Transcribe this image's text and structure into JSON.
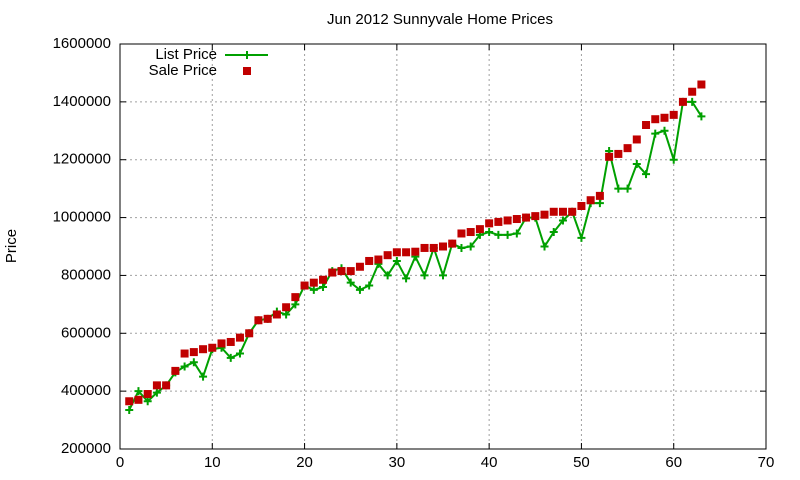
{
  "chart_data": {
    "type": "line",
    "title": "Jun 2012 Sunnyvale Home Prices",
    "y_label": "Price",
    "x": [
      1,
      2,
      3,
      4,
      5,
      6,
      7,
      8,
      9,
      10,
      11,
      12,
      13,
      14,
      15,
      16,
      17,
      18,
      19,
      20,
      21,
      22,
      23,
      24,
      25,
      26,
      27,
      28,
      29,
      30,
      31,
      32,
      33,
      34,
      35,
      36,
      37,
      38,
      39,
      40,
      41,
      42,
      43,
      44,
      45,
      46,
      47,
      48,
      49,
      50,
      51,
      52,
      53,
      54,
      55,
      56,
      57,
      58,
      59,
      60,
      61,
      62,
      63
    ],
    "series": [
      {
        "name": "List Price",
        "color": "#00a000",
        "style": "linespoints",
        "values": [
          335000,
          400000,
          365000,
          395000,
          420000,
          465000,
          485000,
          500000,
          450000,
          545000,
          550000,
          515000,
          530000,
          600000,
          645000,
          650000,
          675000,
          665000,
          700000,
          765000,
          750000,
          760000,
          815000,
          825000,
          775000,
          750000,
          765000,
          840000,
          800000,
          850000,
          790000,
          865000,
          800000,
          895000,
          800000,
          910000,
          895000,
          900000,
          940000,
          950000,
          940000,
          940000,
          945000,
          1000000,
          1000000,
          900000,
          950000,
          990000,
          1020000,
          930000,
          1050000,
          1050000,
          1230000,
          1100000,
          1100000,
          1185000,
          1150000,
          1290000,
          1300000,
          1200000,
          1400000,
          1400000,
          1350000
        ]
      },
      {
        "name": "Sale Price",
        "color": "#c00000",
        "style": "points",
        "values": [
          365000,
          370000,
          390000,
          420000,
          420000,
          470000,
          530000,
          535000,
          545000,
          550000,
          565000,
          570000,
          585000,
          600000,
          645000,
          650000,
          665000,
          690000,
          725000,
          765000,
          775000,
          785000,
          810000,
          815000,
          815000,
          830000,
          850000,
          855000,
          870000,
          880000,
          880000,
          882000,
          895000,
          895000,
          900000,
          910000,
          945000,
          950000,
          960000,
          980000,
          985000,
          990000,
          995000,
          1000000,
          1005000,
          1010000,
          1020000,
          1020000,
          1020000,
          1040000,
          1060000,
          1075000,
          1210000,
          1220000,
          1240000,
          1270000,
          1320000,
          1340000,
          1345000,
          1355000,
          1400000,
          1435000,
          1460000
        ]
      }
    ],
    "xlim": [
      0,
      70
    ],
    "xticks": [
      0,
      10,
      20,
      30,
      40,
      50,
      60,
      70
    ],
    "ylim": [
      200000,
      1600000
    ],
    "yticks": [
      200000,
      400000,
      600000,
      800000,
      1000000,
      1200000,
      1400000,
      1600000
    ],
    "grid": true,
    "legend": "top-left"
  }
}
